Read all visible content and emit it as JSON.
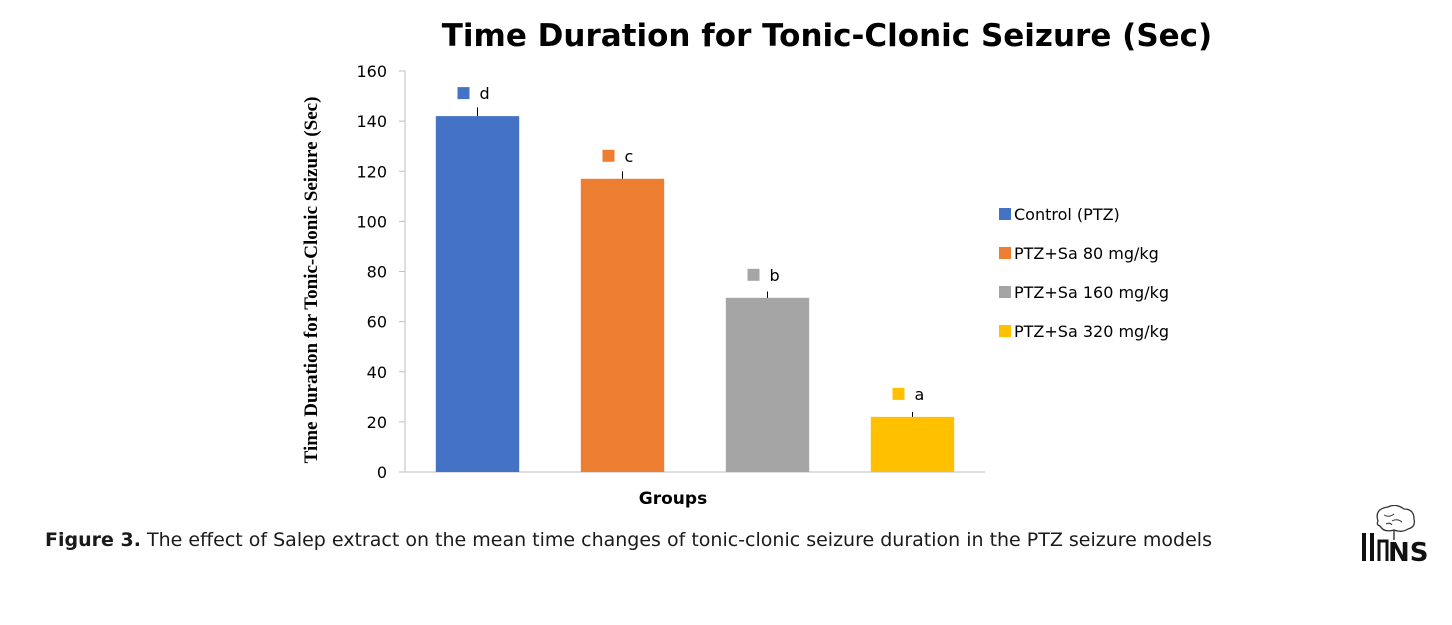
{
  "chart_data": {
    "type": "bar",
    "title": "Time Duration for Tonic-Clonic Seizure  (Sec)",
    "xlabel": "Groups",
    "ylabel": "Time Duration for Tonic-Clonic Seizure  (Sec)",
    "ylim": [
      0,
      160
    ],
    "yticks": [
      0,
      20,
      40,
      60,
      80,
      100,
      120,
      140,
      160
    ],
    "grid": false,
    "legend_position": "right",
    "categories": [
      "Control (PTZ)",
      "PTZ+Sa 80 mg/kg",
      "PTZ+Sa 160 mg/kg",
      "PTZ+Sa 320 mg/kg"
    ],
    "values": [
      142,
      117,
      69.5,
      22
    ],
    "errors": [
      3.5,
      3,
      2.5,
      2
    ],
    "significance_labels": [
      "d",
      "c",
      "b",
      "a"
    ],
    "colors": [
      "#4472C4",
      "#ED7D31",
      "#A5A5A5",
      "#FFC000"
    ]
  },
  "caption": {
    "label": "Figure 3.",
    "text": " The effect of Salep extract on the mean time changes of tonic-clonic seizure duration in the PTZ seizure models"
  },
  "logo": {
    "text": "NS"
  }
}
